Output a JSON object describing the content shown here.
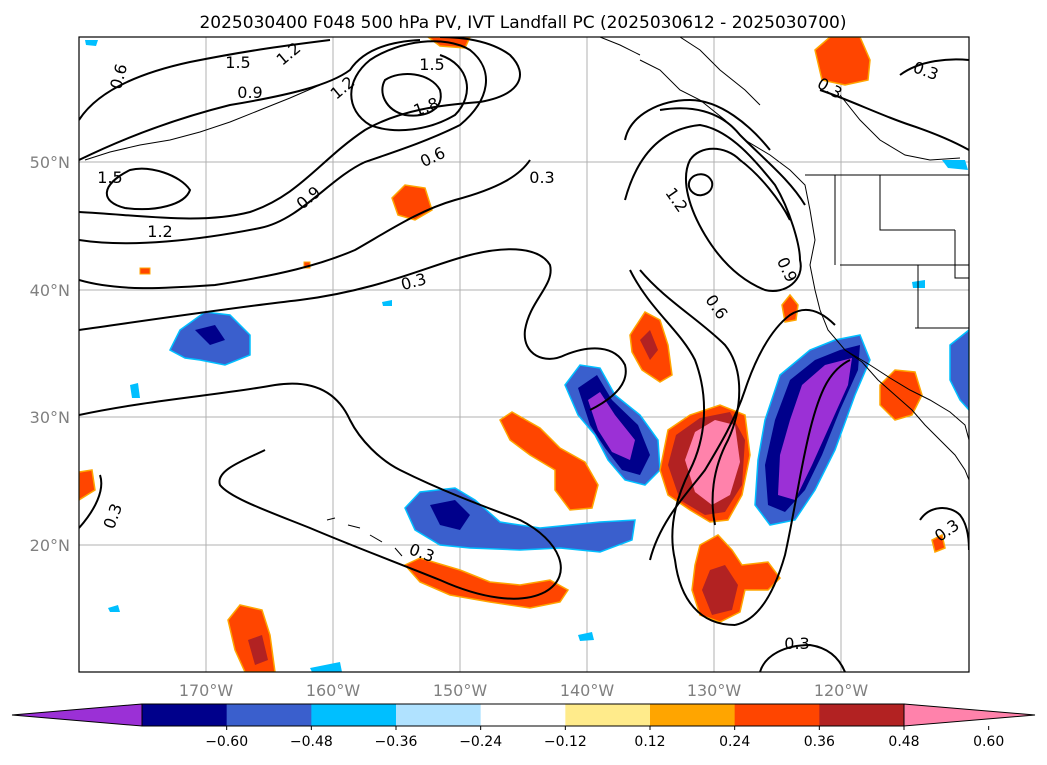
{
  "title": "2025030400 F048 500 hPa PV, IVT Landfall PC (2025030612 - 2025030700)",
  "lat_labels": [
    {
      "label": "50°N",
      "value": 50
    },
    {
      "label": "40°N",
      "value": 40
    },
    {
      "label": "30°N",
      "value": 30
    },
    {
      "label": "20°N",
      "value": 20
    }
  ],
  "lon_labels": [
    {
      "label": "170°W",
      "value": -170
    },
    {
      "label": "160°W",
      "value": -160
    },
    {
      "label": "150°W",
      "value": -150
    },
    {
      "label": "140°W",
      "value": -140
    },
    {
      "label": "130°W",
      "value": -130
    },
    {
      "label": "120°W",
      "value": -120
    }
  ],
  "map_extent": {
    "lon_min": -180,
    "lon_max": -110,
    "lat_min": 10,
    "lat_max": 60
  },
  "colorbar": {
    "ticks": [
      "−0.60",
      "−0.48",
      "−0.36",
      "−0.24",
      "−0.12",
      "0.12",
      "0.24",
      "0.36",
      "0.48",
      "0.60"
    ],
    "colors": [
      "#9b30d6",
      "#00008b",
      "#3a5fcd",
      "#00bfff",
      "#b0e2ff",
      "#ffffff",
      "#ffeb8b",
      "#ffa500",
      "#ff4500",
      "#b22222",
      "#ff82ab"
    ]
  },
  "contour_labels": [
    {
      "text": "1.5"
    },
    {
      "text": "1.2"
    },
    {
      "text": "0.6"
    },
    {
      "text": "0.9"
    },
    {
      "text": "1.2"
    },
    {
      "text": "1.5"
    },
    {
      "text": "1.8"
    },
    {
      "text": "0.6"
    },
    {
      "text": "0.9"
    },
    {
      "text": "1.5"
    },
    {
      "text": "1.2"
    },
    {
      "text": "0.3"
    },
    {
      "text": "0.3"
    },
    {
      "text": "0.3"
    },
    {
      "text": "1.2"
    },
    {
      "text": "0.9"
    },
    {
      "text": "0.6"
    },
    {
      "text": "0.3"
    },
    {
      "text": "0.3"
    },
    {
      "text": "0.3"
    },
    {
      "text": "0.3"
    }
  ]
}
